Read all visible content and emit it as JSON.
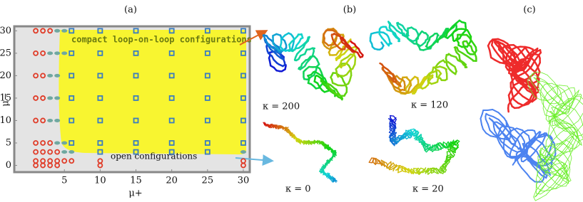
{
  "panel_labels": [
    "(a)",
    "(b)",
    "(c)"
  ],
  "chart_data": {
    "type": "scatter",
    "xlabel": "μ+",
    "ylabel": "μ−",
    "xlim": [
      -2,
      30.9
    ],
    "ylim": [
      -1.5,
      31
    ],
    "xticks": [
      5,
      10,
      15,
      20,
      25,
      30
    ],
    "yticks": [
      0,
      5,
      10,
      15,
      20,
      25,
      30
    ],
    "annotations": [
      "compact loop-on-loop configurations",
      "open configurations"
    ],
    "series": [
      {
        "color": "#e03c28",
        "marker": "circle",
        "x": [
          1,
          2,
          3,
          1,
          2,
          1,
          2,
          1,
          2,
          1,
          2,
          1,
          2,
          3,
          1,
          2,
          3,
          4,
          1,
          2,
          3,
          4,
          5,
          6,
          10,
          30,
          1,
          2,
          3,
          4,
          10,
          30
        ],
        "values": [
          30,
          30,
          30,
          25,
          25,
          20,
          20,
          15,
          15,
          10,
          10,
          5,
          5,
          5,
          3,
          3,
          3,
          3,
          1,
          1,
          1,
          1,
          1,
          1,
          1,
          1,
          0,
          0,
          0,
          0,
          0,
          0
        ]
      },
      {
        "color": "#6fa8a0",
        "marker": "ellipse",
        "x": [
          4,
          5,
          3,
          4,
          5,
          3,
          4,
          3,
          4,
          3,
          4,
          4,
          5,
          5,
          6,
          30
        ],
        "values": [
          30,
          30,
          25,
          25,
          25,
          20,
          20,
          15,
          15,
          10,
          10,
          5,
          5,
          3,
          3,
          3
        ]
      },
      {
        "color": "#3a7cc0",
        "marker": "square",
        "x": [
          6,
          10,
          15,
          20,
          25,
          30,
          6,
          10,
          15,
          20,
          25,
          30,
          6,
          10,
          15,
          20,
          25,
          30,
          6,
          10,
          15,
          20,
          25,
          30,
          6,
          10,
          15,
          20,
          25,
          30,
          6,
          10,
          15,
          20,
          25,
          30,
          10,
          15,
          20,
          25
        ],
        "values": [
          30,
          30,
          30,
          30,
          30,
          30,
          25,
          25,
          25,
          25,
          25,
          25,
          20,
          20,
          20,
          20,
          20,
          20,
          15,
          15,
          15,
          15,
          15,
          15,
          10,
          10,
          10,
          10,
          10,
          10,
          5,
          5,
          5,
          5,
          5,
          5,
          3,
          3,
          3,
          3
        ]
      }
    ]
  },
  "panel_b": {
    "labels": [
      "κ = 200",
      "κ = 120",
      "κ = 0",
      "κ = 20"
    ]
  }
}
